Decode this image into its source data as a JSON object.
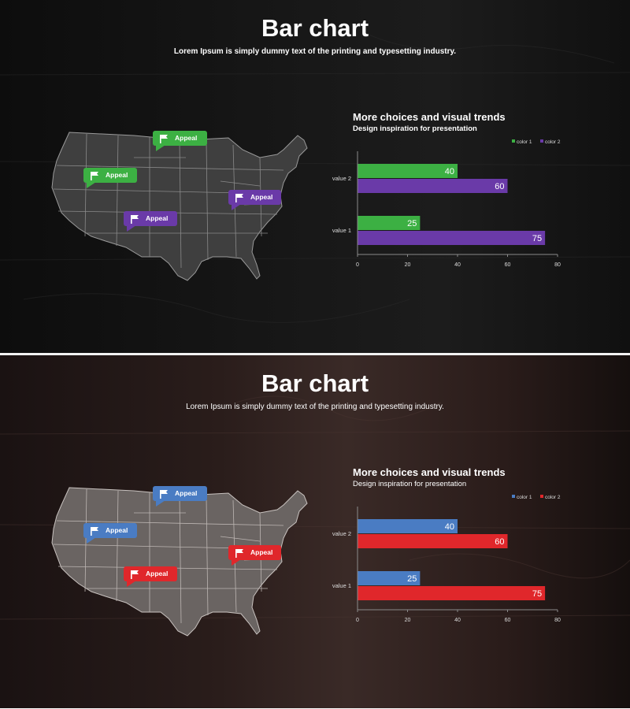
{
  "slides": [
    {
      "title": "Bar chart",
      "subtitle": "Lorem Ipsum is simply dummy text of the printing and typesetting industry.",
      "chart_title": "More choices and visual trends",
      "chart_subtitle": "Design inspiration for presentation",
      "callouts": [
        {
          "label": "Appeal",
          "icon": "flag-icon",
          "color": "#3cb043"
        },
        {
          "label": "Appeal",
          "icon": "flag-icon",
          "color": "#3cb043"
        },
        {
          "label": "Appeal",
          "icon": "flag-icon",
          "color": "#6a3aa8"
        },
        {
          "label": "Appeal",
          "icon": "flag-icon",
          "color": "#6a3aa8"
        }
      ],
      "colors": {
        "series1": "#3cb043",
        "series2": "#6a3aa8"
      }
    },
    {
      "title": "Bar chart",
      "subtitle": "Lorem Ipsum is simply dummy text of the printing and typesetting industry.",
      "chart_title": "More choices and visual trends",
      "chart_subtitle": "Design inspiration for presentation",
      "callouts": [
        {
          "label": "Appeal",
          "icon": "flag-icon",
          "color": "#4a7cc3"
        },
        {
          "label": "Appeal",
          "icon": "flag-icon",
          "color": "#4a7cc3"
        },
        {
          "label": "Appeal",
          "icon": "flag-icon",
          "color": "#e0272b"
        },
        {
          "label": "Appeal",
          "icon": "flag-icon",
          "color": "#e0272b"
        }
      ],
      "colors": {
        "series1": "#4a7cc3",
        "series2": "#e0272b"
      }
    }
  ],
  "chart_data": [
    {
      "type": "bar",
      "orientation": "horizontal",
      "title": "More choices and visual trends",
      "subtitle": "Design inspiration for presentation",
      "categories": [
        "value 2",
        "value 1"
      ],
      "series": [
        {
          "name": "color 1",
          "values": [
            40,
            25
          ],
          "color": "#3cb043"
        },
        {
          "name": "color 2",
          "values": [
            60,
            75
          ],
          "color": "#6a3aa8"
        }
      ],
      "xlim": [
        0,
        80
      ],
      "xticks": [
        0,
        20,
        40,
        60,
        80
      ],
      "legend": "top-right",
      "grid": false
    },
    {
      "type": "bar",
      "orientation": "horizontal",
      "title": "More choices and visual trends",
      "subtitle": "Design inspiration for presentation",
      "categories": [
        "value 2",
        "value 1"
      ],
      "series": [
        {
          "name": "color 1",
          "values": [
            40,
            25
          ],
          "color": "#4a7cc3"
        },
        {
          "name": "color 2",
          "values": [
            60,
            75
          ],
          "color": "#e0272b"
        }
      ],
      "xlim": [
        0,
        80
      ],
      "xticks": [
        0,
        20,
        40,
        60,
        80
      ],
      "legend": "top-right",
      "grid": false
    }
  ]
}
